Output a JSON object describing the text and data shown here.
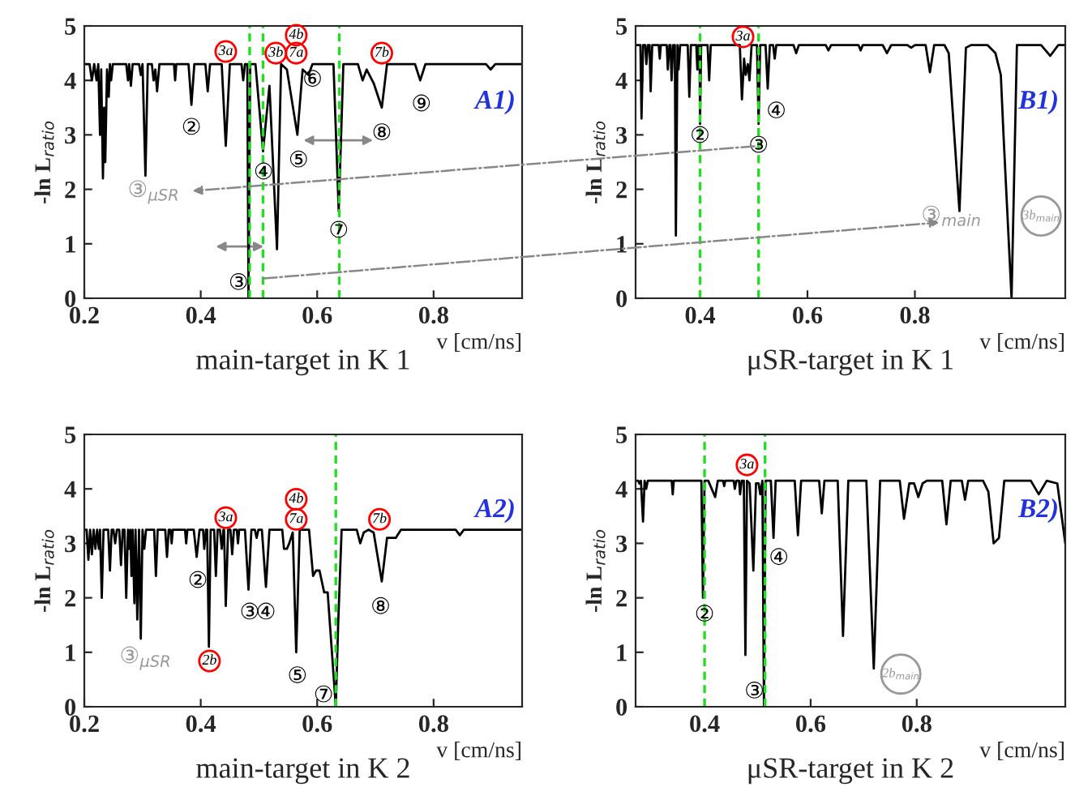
{
  "chart_data": [
    {
      "type": "line",
      "title": "main-target in K 1",
      "xlabel": "v [cm/ns]",
      "ylabel": "-ln L$_{ratio}$",
      "xlim": [
        0.2,
        0.952
      ],
      "ylim": [
        0,
        5
      ],
      "xticks": [
        0.2,
        0.4,
        0.6,
        0.8
      ],
      "yticks": [
        0,
        1,
        2,
        3,
        4,
        5
      ],
      "grid": false,
      "x": [
        0.2,
        0.209,
        0.213,
        0.217,
        0.221,
        0.224,
        0.227,
        0.229,
        0.232,
        0.234,
        0.236,
        0.239,
        0.242,
        0.244,
        0.246,
        0.249,
        0.272,
        0.275,
        0.277,
        0.28,
        0.283,
        0.294,
        0.297,
        0.3,
        0.305,
        0.309,
        0.316,
        0.319,
        0.322,
        0.325,
        0.329,
        0.354,
        0.356,
        0.358,
        0.379,
        0.384,
        0.389,
        0.408,
        0.412,
        0.416,
        0.436,
        0.443,
        0.45,
        0.47,
        0.473,
        0.476,
        0.48,
        0.482,
        0.485,
        0.494,
        0.507,
        0.518,
        0.531,
        0.538,
        0.548,
        0.566,
        0.575,
        0.585,
        0.592,
        0.628,
        0.637,
        0.645,
        0.67,
        0.678,
        0.685,
        0.697,
        0.711,
        0.72,
        0.768,
        0.777,
        0.786,
        0.89,
        0.898,
        0.906,
        0.95
      ],
      "series": [
        {
          "color": "#000000",
          "values": [
            4.3,
            4.3,
            4.0,
            4.3,
            4.0,
            4.3,
            3.0,
            4.2,
            2.2,
            3.5,
            2.5,
            4.2,
            3.7,
            4.3,
            4.0,
            4.3,
            4.3,
            4.0,
            4.3,
            3.9,
            4.3,
            4.3,
            4.1,
            4.3,
            2.25,
            4.3,
            4.3,
            4.0,
            4.2,
            3.8,
            4.3,
            4.3,
            4.0,
            4.3,
            4.3,
            3.55,
            4.3,
            4.3,
            3.8,
            4.3,
            4.3,
            2.8,
            4.3,
            4.3,
            4.0,
            4.3,
            4.3,
            0.0,
            4.3,
            4.3,
            2.7,
            3.9,
            0.9,
            4.3,
            4.2,
            3.0,
            4.2,
            4.1,
            4.3,
            4.3,
            1.6,
            4.3,
            4.3,
            4.0,
            4.2,
            3.95,
            3.5,
            4.3,
            4.3,
            4.0,
            4.3,
            4.3,
            4.2,
            4.3,
            4.3
          ]
        }
      ],
      "ref_lines": [
        {
          "axis": "x",
          "value": 0.484,
          "color": "#22dd22",
          "line_style": "dashed"
        },
        {
          "axis": "x",
          "value": 0.507,
          "color": "#22dd22",
          "line_style": "dashed"
        },
        {
          "axis": "x",
          "value": 0.638,
          "color": "#22dd22",
          "line_style": "dashed"
        }
      ],
      "annotations": [
        "A1)",
        "3a",
        "3b",
        "4b",
        "7a",
        "7b",
        "②",
        "③",
        "④",
        "⑤",
        "⑥",
        "⑦",
        "⑧",
        "⑨",
        "③$_{μSR}$"
      ]
    },
    {
      "type": "line",
      "title": "μSR-target in K 1",
      "xlabel": "v [cm/ns]",
      "ylabel": "-ln L$_{ratio}$",
      "xlim": [
        0.28,
        1.08
      ],
      "ylim": [
        0,
        5
      ],
      "xticks": [
        0.4,
        0.6,
        0.8
      ],
      "yticks": [
        0,
        1,
        2,
        3,
        4,
        5
      ],
      "grid": false,
      "x": [
        0.281,
        0.289,
        0.291,
        0.294,
        0.298,
        0.3,
        0.303,
        0.306,
        0.308,
        0.311,
        0.323,
        0.325,
        0.327,
        0.338,
        0.34,
        0.343,
        0.345,
        0.347,
        0.35,
        0.353,
        0.355,
        0.358,
        0.36,
        0.363,
        0.377,
        0.38,
        0.383,
        0.393,
        0.395,
        0.397,
        0.399,
        0.4,
        0.402,
        0.414,
        0.417,
        0.42,
        0.474,
        0.478,
        0.482,
        0.485,
        0.489,
        0.492,
        0.496,
        0.506,
        0.509,
        0.512,
        0.522,
        0.526,
        0.53,
        0.536,
        0.539,
        0.542,
        0.574,
        0.579,
        0.584,
        0.634,
        0.639,
        0.644,
        0.695,
        0.699,
        0.703,
        0.74,
        0.748,
        0.756,
        0.786,
        0.793,
        0.8,
        0.82,
        0.828,
        0.836,
        0.855,
        0.863,
        0.883,
        0.895,
        0.905,
        0.935,
        0.95,
        0.96,
        0.965,
        0.98,
        0.99,
        1.035,
        1.052,
        1.067,
        1.08
      ],
      "series": [
        {
          "color": "#000000",
          "values": [
            4.65,
            4.65,
            3.3,
            4.65,
            4.65,
            4.3,
            4.65,
            4.65,
            3.8,
            4.65,
            4.65,
            4.4,
            4.65,
            4.65,
            4.2,
            4.65,
            4.65,
            4.0,
            4.65,
            4.65,
            1.15,
            4.65,
            4.2,
            4.65,
            4.65,
            3.7,
            4.65,
            4.65,
            4.2,
            4.65,
            4.65,
            3.2,
            4.65,
            4.65,
            4.0,
            4.65,
            4.65,
            3.65,
            4.4,
            4.1,
            4.3,
            4.0,
            4.65,
            4.65,
            3.2,
            4.65,
            4.65,
            3.85,
            4.65,
            4.65,
            4.4,
            4.65,
            4.65,
            4.5,
            4.65,
            4.65,
            4.55,
            4.65,
            4.65,
            4.55,
            4.65,
            4.65,
            4.5,
            4.65,
            4.65,
            4.6,
            4.65,
            4.65,
            4.15,
            4.65,
            4.65,
            4.5,
            1.6,
            4.6,
            4.65,
            4.65,
            4.5,
            4.1,
            3.0,
            0.0,
            4.65,
            4.65,
            4.45,
            4.65,
            4.65
          ]
        }
      ],
      "ref_lines": [
        {
          "axis": "x",
          "value": 0.4,
          "color": "#22dd22",
          "line_style": "dashed"
        },
        {
          "axis": "x",
          "value": 0.509,
          "color": "#22dd22",
          "line_style": "dashed"
        }
      ],
      "annotations": [
        "B1)",
        "3a",
        "②",
        "③",
        "④",
        "③$_{main}$",
        "3b$_{main}$"
      ]
    },
    {
      "type": "line",
      "title": "main-target in K 2",
      "xlabel": "v [cm/ns]",
      "ylabel": "-ln L$_{ratio}$",
      "xlim": [
        0.2,
        0.952
      ],
      "ylim": [
        0,
        5
      ],
      "xticks": [
        0.2,
        0.4,
        0.6,
        0.8
      ],
      "yticks": [
        0,
        1,
        2,
        3,
        4,
        5
      ],
      "grid": false,
      "x": [
        0.2,
        0.204,
        0.207,
        0.21,
        0.213,
        0.216,
        0.219,
        0.222,
        0.225,
        0.227,
        0.23,
        0.233,
        0.241,
        0.244,
        0.247,
        0.25,
        0.253,
        0.256,
        0.26,
        0.263,
        0.266,
        0.269,
        0.272,
        0.275,
        0.277,
        0.279,
        0.281,
        0.283,
        0.286,
        0.288,
        0.291,
        0.294,
        0.297,
        0.3,
        0.303,
        0.306,
        0.32,
        0.323,
        0.326,
        0.339,
        0.342,
        0.345,
        0.348,
        0.35,
        0.352,
        0.373,
        0.375,
        0.377,
        0.388,
        0.393,
        0.398,
        0.404,
        0.406,
        0.409,
        0.411,
        0.414,
        0.417,
        0.423,
        0.426,
        0.429,
        0.433,
        0.436,
        0.439,
        0.44,
        0.443,
        0.447,
        0.451,
        0.454,
        0.457,
        0.462,
        0.464,
        0.466,
        0.476,
        0.482,
        0.487,
        0.493,
        0.496,
        0.499,
        0.505,
        0.512,
        0.518,
        0.54,
        0.543,
        0.548,
        0.552,
        0.558,
        0.564,
        0.57,
        0.586,
        0.593,
        0.598,
        0.604,
        0.612,
        0.618,
        0.632,
        0.636,
        0.642,
        0.668,
        0.674,
        0.68,
        0.688,
        0.697,
        0.711,
        0.72,
        0.726,
        0.735,
        0.744,
        0.838,
        0.845,
        0.852,
        0.95
      ],
      "series": [
        {
          "color": "#000000",
          "values": [
            3.25,
            3.25,
            2.7,
            3.25,
            2.8,
            3.25,
            2.9,
            3.25,
            2.9,
            3.25,
            2.0,
            3.25,
            3.25,
            2.5,
            3.25,
            3.25,
            3.0,
            3.25,
            3.25,
            2.6,
            3.25,
            3.25,
            2.0,
            3.25,
            2.9,
            3.25,
            2.4,
            3.25,
            1.9,
            3.25,
            1.6,
            3.25,
            1.25,
            3.25,
            2.9,
            3.25,
            3.25,
            2.4,
            3.25,
            3.25,
            2.75,
            3.25,
            3.25,
            3.0,
            3.25,
            3.25,
            3.0,
            3.25,
            3.25,
            2.75,
            3.25,
            3.25,
            2.9,
            3.25,
            3.25,
            1.1,
            3.25,
            3.25,
            2.4,
            3.25,
            3.25,
            2.9,
            3.25,
            3.25,
            1.85,
            3.25,
            3.25,
            2.8,
            3.25,
            3.25,
            3.0,
            3.25,
            3.25,
            2.15,
            3.25,
            3.25,
            3.1,
            3.25,
            3.25,
            2.2,
            3.25,
            3.25,
            2.9,
            2.9,
            3.0,
            3.2,
            1.0,
            3.25,
            3.25,
            2.4,
            2.5,
            2.5,
            2.1,
            2.1,
            0.0,
            1.5,
            3.25,
            3.25,
            3.0,
            3.2,
            3.25,
            3.2,
            2.3,
            3.1,
            3.1,
            3.1,
            3.25,
            3.25,
            3.15,
            3.25,
            3.25
          ]
        }
      ],
      "ref_lines": [
        {
          "axis": "x",
          "value": 0.632,
          "color": "#22dd22",
          "line_style": "dashed"
        }
      ],
      "annotations": [
        "A2)",
        "3a",
        "4b",
        "7a",
        "7b",
        "2b",
        "②",
        "③",
        "④",
        "⑤",
        "⑦",
        "⑧",
        "③$_{μSR}$"
      ]
    },
    {
      "type": "line",
      "title": "μSR-target in K 2",
      "xlabel": "v [cm/ns]",
      "ylabel": "-ln L$_{ratio}$",
      "xlim": [
        0.27,
        1.08
      ],
      "ylim": [
        0,
        5
      ],
      "xticks": [
        0.4,
        0.6,
        0.8
      ],
      "yticks": [
        0,
        1,
        2,
        3,
        4,
        5
      ],
      "grid": false,
      "x": [
        0.27,
        0.275,
        0.277,
        0.28,
        0.284,
        0.287,
        0.29,
        0.293,
        0.338,
        0.34,
        0.342,
        0.394,
        0.397,
        0.4,
        0.407,
        0.42,
        0.425,
        0.435,
        0.437,
        0.439,
        0.455,
        0.457,
        0.46,
        0.465,
        0.467,
        0.47,
        0.474,
        0.477,
        0.48,
        0.485,
        0.492,
        0.497,
        0.502,
        0.505,
        0.509,
        0.512,
        0.515,
        0.525,
        0.53,
        0.534,
        0.57,
        0.576,
        0.582,
        0.616,
        0.621,
        0.626,
        0.651,
        0.661,
        0.671,
        0.705,
        0.719,
        0.731,
        0.768,
        0.776,
        0.786,
        0.795,
        0.803,
        0.811,
        0.819,
        0.848,
        0.856,
        0.864,
        0.885,
        0.891,
        0.897,
        0.925,
        0.935,
        0.945,
        0.955,
        0.965,
        1.015,
        1.03,
        1.045,
        1.065,
        1.08
      ],
      "series": [
        {
          "color": "#000000",
          "values": [
            4.15,
            4.15,
            4.1,
            4.15,
            3.4,
            4.15,
            4.0,
            4.15,
            4.15,
            3.9,
            4.15,
            4.15,
            2.0,
            4.15,
            4.15,
            3.85,
            4.15,
            4.15,
            4.05,
            4.15,
            4.15,
            4.0,
            4.15,
            4.15,
            3.9,
            4.15,
            4.15,
            0.95,
            4.15,
            4.1,
            2.5,
            4.1,
            4.1,
            3.9,
            4.15,
            0.0,
            4.15,
            4.15,
            3.1,
            4.15,
            4.15,
            3.15,
            4.15,
            4.15,
            3.55,
            4.15,
            4.15,
            1.3,
            4.15,
            4.15,
            0.7,
            4.15,
            4.15,
            3.45,
            4.1,
            4.1,
            3.85,
            4.1,
            4.15,
            4.15,
            3.35,
            4.15,
            4.15,
            3.8,
            4.15,
            4.15,
            3.95,
            3.0,
            3.1,
            4.15,
            4.15,
            3.9,
            4.15,
            4.1,
            3.0
          ]
        }
      ],
      "ref_lines": [
        {
          "axis": "x",
          "value": 0.4,
          "color": "#22dd22",
          "line_style": "dashed"
        },
        {
          "axis": "x",
          "value": 0.514,
          "color": "#22dd22",
          "line_style": "dashed"
        }
      ],
      "annotations": [
        "B2)",
        "3a",
        "②",
        "③",
        "④",
        "2b$_{main}$"
      ]
    }
  ]
}
